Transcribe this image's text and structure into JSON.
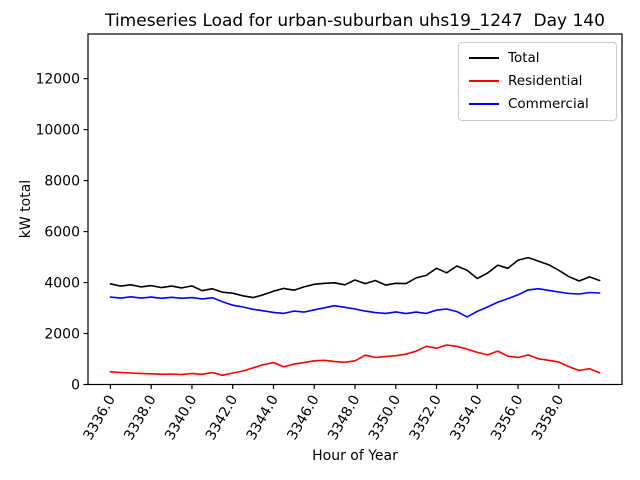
{
  "chart_data": {
    "type": "line",
    "title": "Timeseries Load for urban-suburban uhs19_1247  Day 140",
    "xlabel": "Hour of Year",
    "ylabel": "kW total",
    "xlim": [
      3334.9,
      3361.1
    ],
    "ylim": [
      0,
      13750
    ],
    "grid": false,
    "legend_position": "upper right",
    "x_ticks": [
      3336,
      3338,
      3340,
      3342,
      3344,
      3346,
      3348,
      3350,
      3352,
      3354,
      3356,
      3358
    ],
    "x_tick_labels": [
      "3336.0",
      "3338.0",
      "3340.0",
      "3342.0",
      "3344.0",
      "3346.0",
      "3348.0",
      "3350.0",
      "3352.0",
      "3354.0",
      "3356.0",
      "3358.0"
    ],
    "y_ticks": [
      0,
      2000,
      4000,
      6000,
      8000,
      10000,
      12000
    ],
    "y_tick_labels": [
      "0",
      "2000",
      "4000",
      "6000",
      "8000",
      "10000",
      "12000"
    ],
    "x": [
      3336.0,
      3336.5,
      3337.0,
      3337.5,
      3338.0,
      3338.5,
      3339.0,
      3339.5,
      3340.0,
      3340.5,
      3341.0,
      3341.5,
      3342.0,
      3342.5,
      3343.0,
      3343.5,
      3344.0,
      3344.5,
      3345.0,
      3345.5,
      3346.0,
      3346.5,
      3347.0,
      3347.5,
      3348.0,
      3348.5,
      3349.0,
      3349.5,
      3350.0,
      3350.5,
      3351.0,
      3351.5,
      3352.0,
      3352.5,
      3353.0,
      3353.5,
      3354.0,
      3354.5,
      3355.0,
      3355.5,
      3356.0,
      3356.5,
      3357.0,
      3357.5,
      3358.0,
      3358.5,
      3359.0,
      3359.5,
      3360.0
    ],
    "series": [
      {
        "name": "Total",
        "color": "#000000",
        "values": [
          3950,
          3860,
          3910,
          3830,
          3880,
          3800,
          3860,
          3790,
          3870,
          3680,
          3760,
          3620,
          3580,
          3480,
          3410,
          3520,
          3660,
          3770,
          3700,
          3830,
          3930,
          3970,
          3990,
          3910,
          4100,
          3960,
          4080,
          3900,
          3970,
          3960,
          4180,
          4280,
          4560,
          4380,
          4650,
          4480,
          4160,
          4370,
          4680,
          4560,
          4880,
          4980,
          4840,
          4700,
          4480,
          4230,
          4060,
          4220,
          4080
        ]
      },
      {
        "name": "Residential",
        "color": "#ff0000",
        "values": [
          500,
          470,
          450,
          430,
          420,
          400,
          410,
          390,
          430,
          400,
          470,
          360,
          450,
          530,
          650,
          780,
          860,
          690,
          800,
          860,
          930,
          950,
          900,
          870,
          930,
          1150,
          1060,
          1100,
          1130,
          1190,
          1310,
          1500,
          1420,
          1550,
          1500,
          1390,
          1260,
          1160,
          1310,
          1110,
          1060,
          1160,
          1010,
          950,
          880,
          700,
          550,
          620,
          460
        ]
      },
      {
        "name": "Commercial",
        "color": "#0000ff",
        "values": [
          3430,
          3390,
          3440,
          3390,
          3430,
          3380,
          3420,
          3380,
          3410,
          3360,
          3400,
          3250,
          3110,
          3040,
          2950,
          2890,
          2830,
          2790,
          2880,
          2840,
          2930,
          3010,
          3090,
          3030,
          2960,
          2880,
          2820,
          2790,
          2850,
          2780,
          2840,
          2790,
          2920,
          2960,
          2860,
          2650,
          2870,
          3040,
          3230,
          3370,
          3520,
          3710,
          3760,
          3690,
          3630,
          3570,
          3550,
          3610,
          3590
        ]
      }
    ]
  }
}
